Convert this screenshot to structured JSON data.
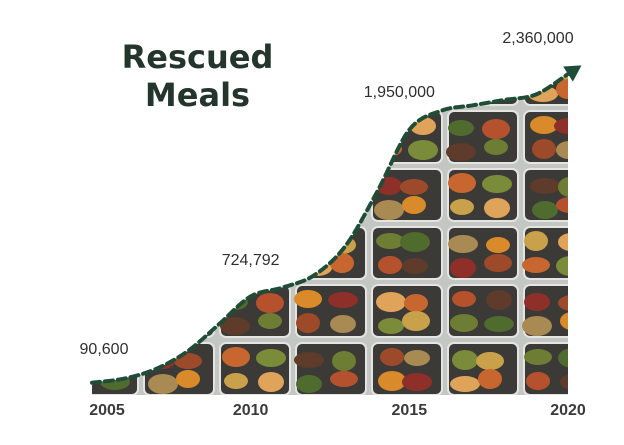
{
  "chart_data": {
    "type": "area",
    "title_lines": [
      "Rescued",
      "Meals"
    ],
    "xlabel": "",
    "ylabel": "",
    "x_ticks": [
      "2005",
      "2010",
      "2015",
      "2020"
    ],
    "xlim": [
      2005,
      2020
    ],
    "ylim": [
      0,
      2500000
    ],
    "grid": false,
    "legend": "none",
    "arrow_at_end": true,
    "points": [
      {
        "x": 2005,
        "y": 90600
      },
      {
        "x": 2006,
        "y": 120000
      },
      {
        "x": 2007,
        "y": 190000
      },
      {
        "x": 2008,
        "y": 320000
      },
      {
        "x": 2009,
        "y": 520000
      },
      {
        "x": 2010,
        "y": 724792
      },
      {
        "x": 2011,
        "y": 790000
      },
      {
        "x": 2012,
        "y": 880000
      },
      {
        "x": 2013,
        "y": 1100000
      },
      {
        "x": 2014,
        "y": 1500000
      },
      {
        "x": 2015,
        "y": 1950000
      },
      {
        "x": 2016,
        "y": 2090000
      },
      {
        "x": 2017,
        "y": 2130000
      },
      {
        "x": 2018,
        "y": 2170000
      },
      {
        "x": 2019,
        "y": 2210000
      },
      {
        "x": 2020,
        "y": 2360000
      }
    ],
    "data_labels": [
      {
        "x": 2005,
        "y": 90600,
        "text": "90,600"
      },
      {
        "x": 2010,
        "y": 724792,
        "text": "724,792"
      },
      {
        "x": 2015,
        "y": 1950000,
        "text": "1,950,000"
      },
      {
        "x": 2020,
        "y": 2360000,
        "text": "2,360,000"
      }
    ],
    "colors": {
      "line": "#1f4d37",
      "fill_tray": "#c4c6c2",
      "title": "#24352e"
    }
  }
}
